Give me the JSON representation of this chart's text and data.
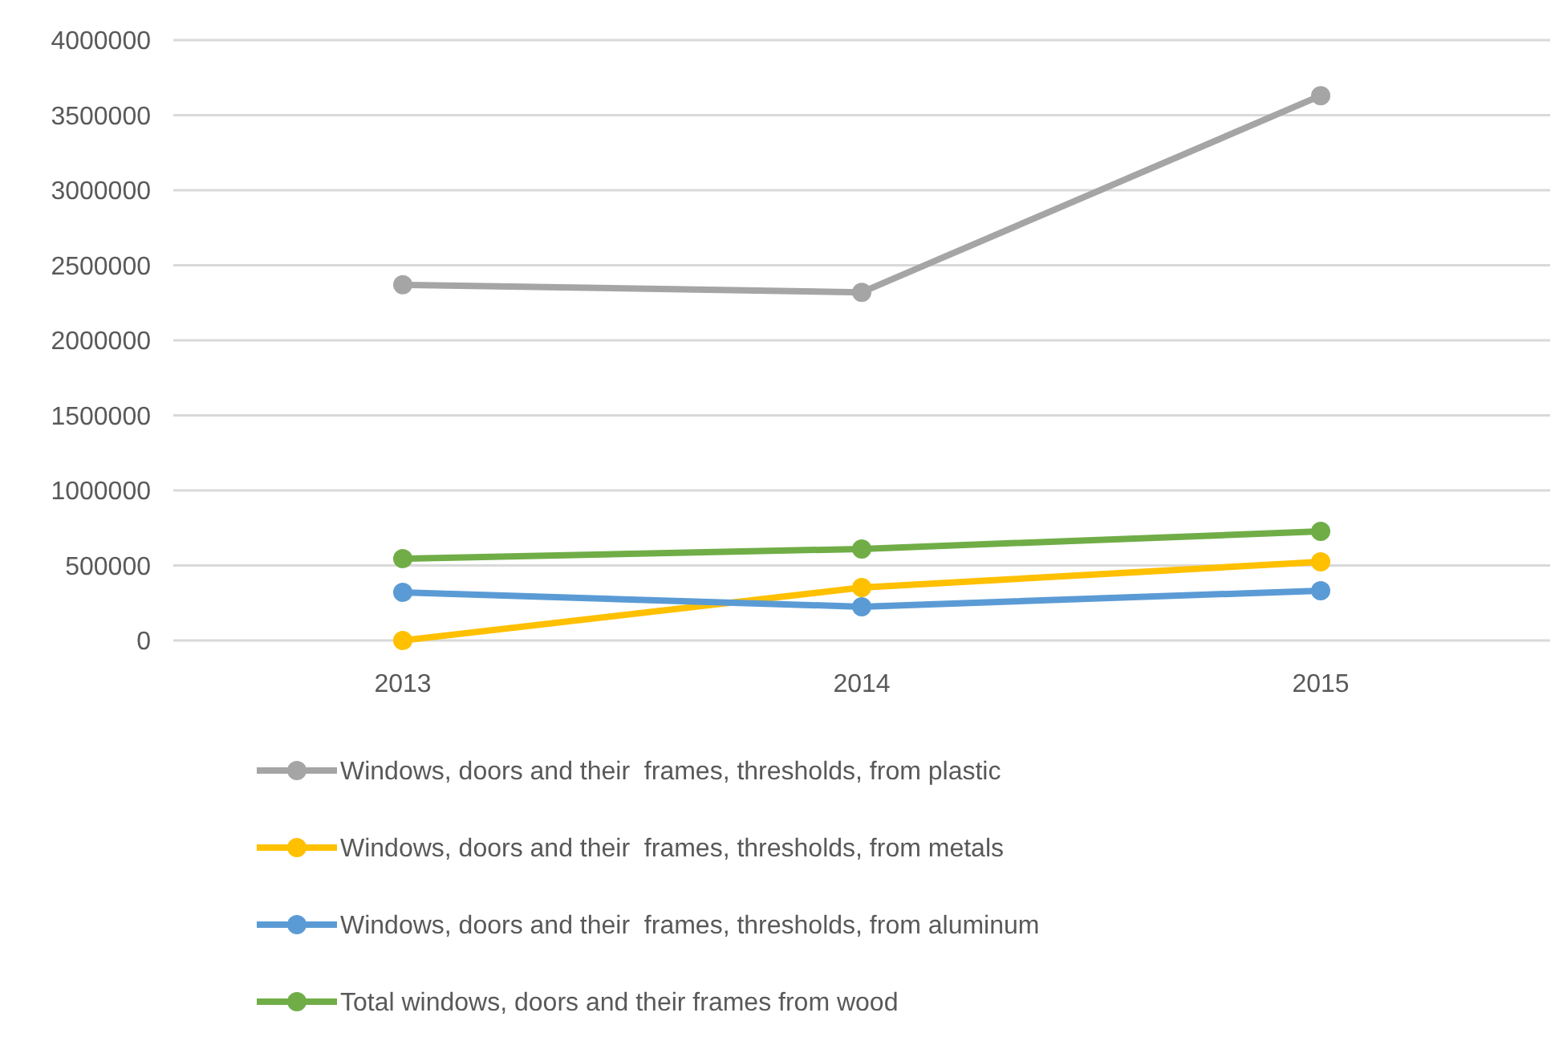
{
  "chart_data": {
    "type": "line",
    "categories": [
      "2013",
      "2014",
      "2015"
    ],
    "series": [
      {
        "name": "Windows, doors and their  frames, thresholds, from plastic",
        "color": "#a5a5a5",
        "values": [
          2370000,
          2320000,
          3630000
        ]
      },
      {
        "name": "Windows, doors and their  frames, thresholds, from metals",
        "color": "#ffc000",
        "values": [
          0,
          353000,
          524000
        ]
      },
      {
        "name": "Windows, doors and their  frames, thresholds, from aluminum",
        "color": "#5b9bd5",
        "values": [
          321000,
          225000,
          332000
        ]
      },
      {
        "name": "Total windows, doors and their frames from wood",
        "color": "#70ad47",
        "values": [
          545000,
          610000,
          727000
        ]
      }
    ],
    "ylim": [
      0,
      4000000
    ],
    "yticks": [
      0,
      500000,
      1000000,
      1500000,
      2000000,
      2500000,
      3000000,
      3500000,
      4000000
    ],
    "grid": "y",
    "legend": "bottom",
    "marker": "circle",
    "line_style": "solid"
  }
}
